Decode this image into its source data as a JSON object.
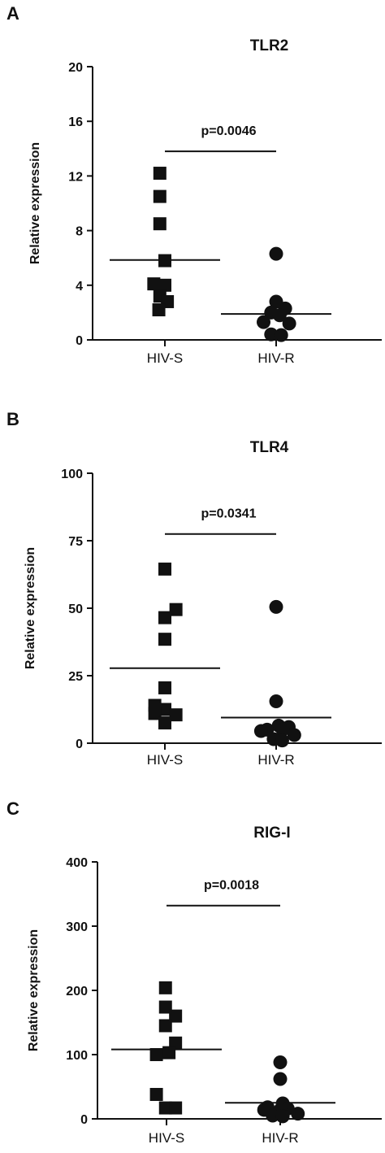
{
  "colors": {
    "ink": "#111111",
    "background": "#ffffff"
  },
  "chart_data": [
    {
      "type": "scatter",
      "panel_label": "A",
      "title": "TLR2",
      "ylabel": "Relative expression",
      "xlabel": "",
      "categories": [
        "HIV-S",
        "HIV-R"
      ],
      "ylim": [
        0,
        20
      ],
      "yticks": [
        0,
        4,
        8,
        12,
        16,
        20
      ],
      "grid": false,
      "series": [
        {
          "category": "HIV-S",
          "marker": "square",
          "points": [
            {
              "x": -0.1,
              "y": 12.2
            },
            {
              "x": -0.1,
              "y": 10.5
            },
            {
              "x": -0.1,
              "y": 8.5
            },
            {
              "x": 0.0,
              "y": 5.8
            },
            {
              "x": -0.22,
              "y": 4.1
            },
            {
              "x": 0.0,
              "y": 4.0
            },
            {
              "x": -0.1,
              "y": 3.2
            },
            {
              "x": 0.05,
              "y": 2.8
            },
            {
              "x": -0.12,
              "y": 2.2
            }
          ],
          "mean": 5.85
        },
        {
          "category": "HIV-R",
          "marker": "circle",
          "points": [
            {
              "x": 0.0,
              "y": 6.3
            },
            {
              "x": 0.0,
              "y": 2.8
            },
            {
              "x": 0.18,
              "y": 2.3
            },
            {
              "x": -0.1,
              "y": 2.0
            },
            {
              "x": 0.07,
              "y": 1.8
            },
            {
              "x": -0.25,
              "y": 1.3
            },
            {
              "x": 0.26,
              "y": 1.2
            },
            {
              "x": -0.1,
              "y": 0.4
            },
            {
              "x": 0.1,
              "y": 0.35
            }
          ],
          "mean": 1.9
        }
      ],
      "significance": {
        "label": "p=0.0046",
        "y": 13.8
      }
    },
    {
      "type": "scatter",
      "panel_label": "B",
      "title": "TLR4",
      "ylabel": "Relative expression",
      "xlabel": "",
      "categories": [
        "HIV-S",
        "HIV-R"
      ],
      "ylim": [
        0,
        100
      ],
      "yticks": [
        0,
        25,
        50,
        75,
        100
      ],
      "grid": false,
      "series": [
        {
          "category": "HIV-S",
          "marker": "square",
          "points": [
            {
              "x": 0.0,
              "y": 64.5
            },
            {
              "x": 0.22,
              "y": 49.5
            },
            {
              "x": 0.0,
              "y": 46.5
            },
            {
              "x": 0.0,
              "y": 38.5
            },
            {
              "x": 0.0,
              "y": 20.5
            },
            {
              "x": -0.2,
              "y": 14.0
            },
            {
              "x": 0.0,
              "y": 12.5
            },
            {
              "x": -0.2,
              "y": 11.0
            },
            {
              "x": 0.22,
              "y": 10.5
            },
            {
              "x": 0.0,
              "y": 7.5
            }
          ],
          "mean": 27.8
        },
        {
          "category": "HIV-R",
          "marker": "circle",
          "points": [
            {
              "x": 0.0,
              "y": 50.5
            },
            {
              "x": 0.0,
              "y": 15.5
            },
            {
              "x": 0.05,
              "y": 6.5
            },
            {
              "x": 0.25,
              "y": 6.0
            },
            {
              "x": 0.13,
              "y": 5.0
            },
            {
              "x": -0.18,
              "y": 5.0
            },
            {
              "x": 0.36,
              "y": 3.0
            },
            {
              "x": -0.3,
              "y": 4.5
            },
            {
              "x": -0.05,
              "y": 1.5
            },
            {
              "x": 0.12,
              "y": 1.0
            }
          ],
          "mean": 9.5
        }
      ],
      "significance": {
        "label": "p=0.0341",
        "y": 77.5
      }
    },
    {
      "type": "scatter",
      "panel_label": "C",
      "title": "RIG-I",
      "ylabel": "Relative expression",
      "xlabel": "",
      "categories": [
        "HIV-S",
        "HIV-R"
      ],
      "ylim": [
        0,
        400
      ],
      "yticks": [
        0,
        100,
        200,
        300,
        400
      ],
      "grid": false,
      "series": [
        {
          "category": "HIV-S",
          "marker": "square",
          "points": [
            {
              "x": -0.02,
              "y": 204
            },
            {
              "x": -0.02,
              "y": 174
            },
            {
              "x": 0.18,
              "y": 160
            },
            {
              "x": -0.02,
              "y": 145
            },
            {
              "x": 0.18,
              "y": 118
            },
            {
              "x": 0.05,
              "y": 103
            },
            {
              "x": -0.2,
              "y": 100
            },
            {
              "x": -0.2,
              "y": 38
            },
            {
              "x": -0.02,
              "y": 17
            },
            {
              "x": 0.18,
              "y": 17
            }
          ],
          "mean": 108
        },
        {
          "category": "HIV-R",
          "marker": "circle",
          "points": [
            {
              "x": 0.0,
              "y": 88
            },
            {
              "x": 0.0,
              "y": 62
            },
            {
              "x": 0.05,
              "y": 24
            },
            {
              "x": -0.25,
              "y": 18
            },
            {
              "x": 0.15,
              "y": 16
            },
            {
              "x": 0.0,
              "y": 14
            },
            {
              "x": -0.32,
              "y": 14
            },
            {
              "x": 0.35,
              "y": 8
            },
            {
              "x": -0.15,
              "y": 5
            },
            {
              "x": 0.05,
              "y": 4
            }
          ],
          "mean": 25
        }
      ],
      "significance": {
        "label": "p=0.0018",
        "y": 332
      }
    }
  ]
}
